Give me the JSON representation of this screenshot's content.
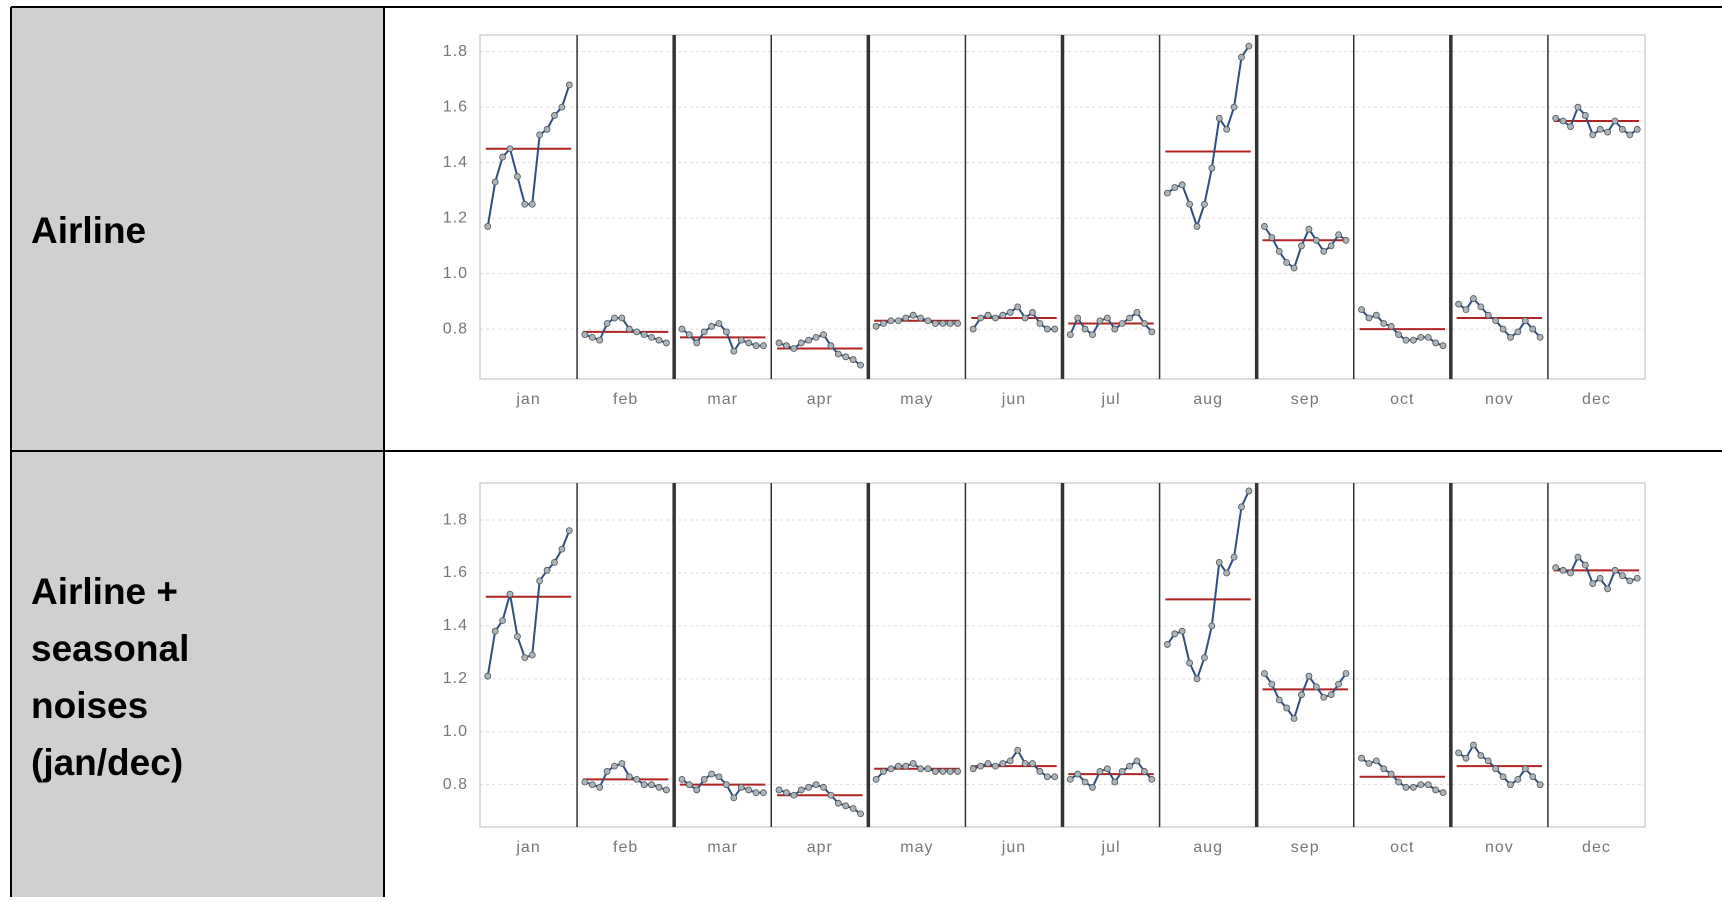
{
  "table": {
    "rows": [
      {
        "label": [
          "Airline"
        ]
      },
      {
        "label": [
          "Airline +",
          "seasonal",
          "noises",
          "(jan/dec)"
        ]
      }
    ]
  },
  "chart_data": [
    {
      "type": "subseries",
      "categories": [
        "jan",
        "feb",
        "mar",
        "apr",
        "may",
        "jun",
        "jul",
        "aug",
        "sep",
        "oct",
        "nov",
        "dec"
      ],
      "values": [
        [
          1.17,
          1.33,
          1.42,
          1.45,
          1.35,
          1.25,
          1.25,
          1.5,
          1.52,
          1.57,
          1.6,
          1.68
        ],
        [
          0.78,
          0.77,
          0.76,
          0.82,
          0.84,
          0.84,
          0.8,
          0.79,
          0.78,
          0.77,
          0.76,
          0.75
        ],
        [
          0.8,
          0.78,
          0.75,
          0.79,
          0.81,
          0.82,
          0.79,
          0.72,
          0.76,
          0.75,
          0.74,
          0.74
        ],
        [
          0.75,
          0.74,
          0.73,
          0.75,
          0.76,
          0.77,
          0.78,
          0.74,
          0.71,
          0.7,
          0.69,
          0.67
        ],
        [
          0.81,
          0.82,
          0.83,
          0.83,
          0.84,
          0.85,
          0.84,
          0.83,
          0.82,
          0.82,
          0.82,
          0.82
        ],
        [
          0.8,
          0.84,
          0.85,
          0.84,
          0.85,
          0.86,
          0.88,
          0.84,
          0.86,
          0.82,
          0.8,
          0.8
        ],
        [
          0.78,
          0.84,
          0.8,
          0.78,
          0.83,
          0.84,
          0.8,
          0.82,
          0.84,
          0.86,
          0.82,
          0.79
        ],
        [
          1.29,
          1.31,
          1.32,
          1.25,
          1.17,
          1.25,
          1.38,
          1.56,
          1.52,
          1.6,
          1.78,
          1.82
        ],
        [
          1.17,
          1.13,
          1.08,
          1.04,
          1.02,
          1.1,
          1.16,
          1.12,
          1.08,
          1.1,
          1.14,
          1.12
        ],
        [
          0.87,
          0.84,
          0.85,
          0.82,
          0.81,
          0.78,
          0.76,
          0.76,
          0.77,
          0.77,
          0.75,
          0.74
        ],
        [
          0.89,
          0.87,
          0.91,
          0.88,
          0.85,
          0.83,
          0.8,
          0.77,
          0.79,
          0.83,
          0.8,
          0.77
        ],
        [
          1.56,
          1.55,
          1.53,
          1.6,
          1.57,
          1.5,
          1.52,
          1.51,
          1.55,
          1.52,
          1.5,
          1.52
        ]
      ],
      "means": [
        1.45,
        0.79,
        0.77,
        0.73,
        0.83,
        0.84,
        0.82,
        1.44,
        1.12,
        0.8,
        0.84,
        1.55
      ],
      "point_color": "#a9b4bb",
      "line_color": "#2f4f7f",
      "mean_color": "#b22222",
      "ylim": [
        0.62,
        1.86
      ],
      "yticks": [
        0.8,
        {
          "value": 1,
          "label": "1.0"
        },
        1.2,
        1.4,
        1.6,
        1.8
      ],
      "grid": true
    },
    {
      "type": "subseries",
      "categories": [
        "jan",
        "feb",
        "mar",
        "apr",
        "may",
        "jun",
        "jul",
        "aug",
        "sep",
        "oct",
        "nov",
        "dec"
      ],
      "values": [
        [
          1.21,
          1.38,
          1.42,
          1.52,
          1.36,
          1.28,
          1.29,
          1.57,
          1.61,
          1.64,
          1.69,
          1.76
        ],
        [
          0.81,
          0.8,
          0.79,
          0.85,
          0.87,
          0.88,
          0.83,
          0.82,
          0.8,
          0.8,
          0.79,
          0.78
        ],
        [
          0.82,
          0.8,
          0.78,
          0.82,
          0.84,
          0.83,
          0.8,
          0.75,
          0.79,
          0.78,
          0.77,
          0.77
        ],
        [
          0.78,
          0.77,
          0.76,
          0.78,
          0.79,
          0.8,
          0.79,
          0.76,
          0.73,
          0.72,
          0.71,
          0.69
        ],
        [
          0.82,
          0.85,
          0.86,
          0.87,
          0.87,
          0.88,
          0.86,
          0.86,
          0.85,
          0.85,
          0.85,
          0.85
        ],
        [
          0.86,
          0.87,
          0.88,
          0.87,
          0.88,
          0.89,
          0.93,
          0.88,
          0.88,
          0.85,
          0.83,
          0.83
        ],
        [
          0.82,
          0.84,
          0.81,
          0.79,
          0.85,
          0.86,
          0.81,
          0.85,
          0.87,
          0.89,
          0.85,
          0.82
        ],
        [
          1.33,
          1.37,
          1.38,
          1.26,
          1.2,
          1.28,
          1.4,
          1.64,
          1.6,
          1.66,
          1.85,
          1.91
        ],
        [
          1.22,
          1.18,
          1.12,
          1.09,
          1.05,
          1.14,
          1.21,
          1.17,
          1.13,
          1.14,
          1.18,
          1.22
        ],
        [
          0.9,
          0.88,
          0.89,
          0.86,
          0.84,
          0.81,
          0.79,
          0.79,
          0.8,
          0.8,
          0.78,
          0.77
        ],
        [
          0.92,
          0.9,
          0.95,
          0.91,
          0.89,
          0.86,
          0.83,
          0.8,
          0.82,
          0.86,
          0.83,
          0.8
        ],
        [
          1.62,
          1.61,
          1.6,
          1.66,
          1.63,
          1.56,
          1.58,
          1.54,
          1.61,
          1.59,
          1.57,
          1.58
        ]
      ],
      "means": [
        1.51,
        0.82,
        0.8,
        0.76,
        0.86,
        0.87,
        0.84,
        1.5,
        1.16,
        0.83,
        0.87,
        1.61
      ],
      "point_color": "#a9b4bb",
      "line_color": "#2f4f7f",
      "mean_color": "#b22222",
      "ylim": [
        0.64,
        1.94
      ],
      "yticks": [
        0.8,
        {
          "value": 1,
          "label": "1.0"
        },
        1.2,
        1.4,
        1.6,
        1.8
      ],
      "grid": true
    }
  ]
}
